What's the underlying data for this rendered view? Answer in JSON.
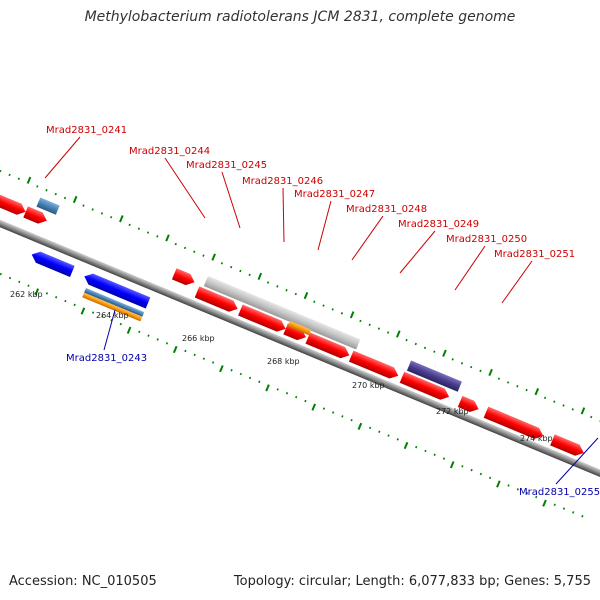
{
  "title": "Methylobacterium radiotolerans JCM 2831, complete genome",
  "footer": {
    "accession": "Accession: NC_010505",
    "summary": "Topology: circular; Length: 6,077,833 bp; Genes: 5,755"
  },
  "colors": {
    "forward_gene": "#ff0000",
    "reverse_gene": "#0000ff",
    "pseudogene": "#c0c0c0",
    "rna": "#4682b4",
    "orange_feature": "#ff9900",
    "purple_feature": "#483d8b",
    "tick": "#008000",
    "backbone": "#808080",
    "label_forward": "#cc0000",
    "label_reverse": "#0000aa"
  },
  "tick_labels": [
    "262 kbp",
    "264 kbp",
    "266 kbp",
    "268 kbp",
    "270 kbp",
    "272 kbp",
    "274 kbp"
  ],
  "gene_labels": {
    "top": [
      "Mrad2831_0241",
      "Mrad2831_0244",
      "Mrad2831_0245",
      "Mrad2831_0246",
      "Mrad2831_0247",
      "Mrad2831_0248",
      "Mrad2831_0249",
      "Mrad2831_0250",
      "Mrad2831_0251"
    ],
    "bottom": [
      "Mrad2831_0243",
      "Mrad2831_0255"
    ]
  }
}
